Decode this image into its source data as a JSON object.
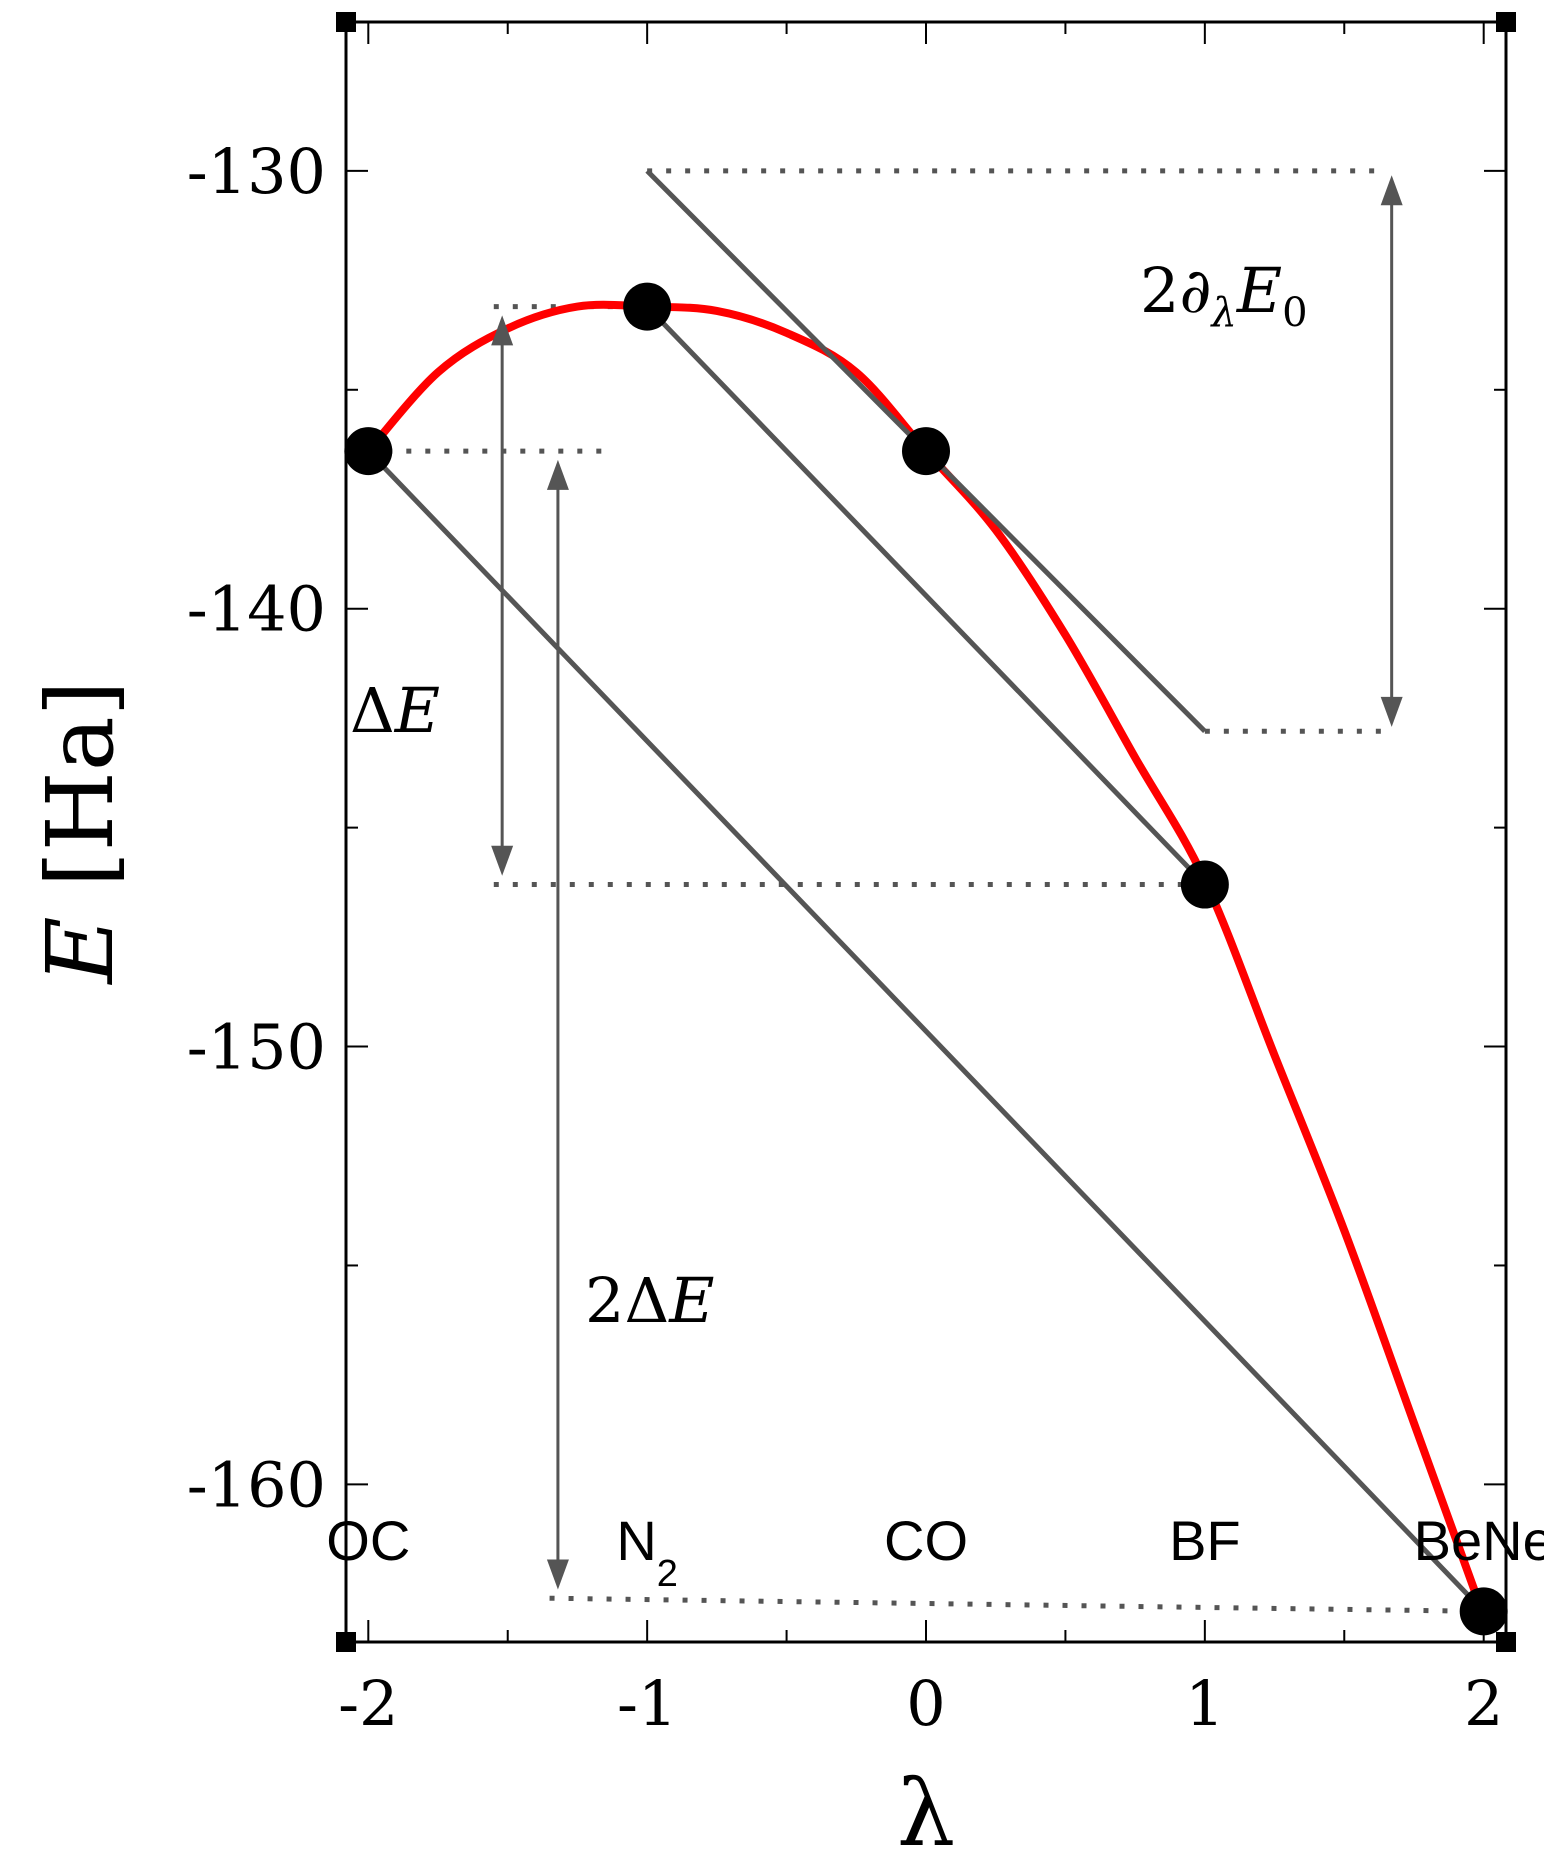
{
  "chart_data": {
    "type": "line",
    "xlabel": "λ",
    "ylabel_italic": "E",
    "ylabel_rest": " [Ha]",
    "xlim": [
      -2.08,
      2.08
    ],
    "ylim": [
      -163.6,
      -126.6
    ],
    "x_ticks": [
      -2,
      -1,
      0,
      1,
      2
    ],
    "x_tick_labels": [
      "-2",
      "-1",
      "0",
      "1",
      "2"
    ],
    "x_minor_ticks": [
      -1.5,
      -0.5,
      0.5,
      1.5
    ],
    "y_ticks": [
      -130,
      -140,
      -150,
      -160
    ],
    "y_tick_labels": [
      "-130",
      "-140",
      "-150",
      "-160"
    ],
    "y_minor_ticks": [
      -135,
      -145,
      -155
    ],
    "curve": {
      "color": "#ff0000",
      "x": [
        -2,
        -1.75,
        -1.5,
        -1.25,
        -1,
        -0.75,
        -0.5,
        -0.25,
        0,
        0.25,
        0.5,
        0.75,
        1,
        1.25,
        1.5,
        1.75,
        2
      ],
      "y": [
        -136.4,
        -134.6,
        -133.6,
        -133.1,
        -133.1,
        -133.2,
        -133.7,
        -134.6,
        -136.4,
        -138.2,
        -140.6,
        -143.4,
        -146.2,
        -150.2,
        -154.2,
        -158.6,
        -163.0
      ]
    },
    "points": {
      "color": "#000000",
      "x": [
        -2,
        -1,
        0,
        1,
        2
      ],
      "y": [
        -136.4,
        -133.1,
        -136.4,
        -146.3,
        -162.9
      ]
    },
    "molecule_labels": [
      {
        "x": -2,
        "text": "OC"
      },
      {
        "x": -1,
        "text": "N",
        "sub": "2"
      },
      {
        "x": 0,
        "text": "CO"
      },
      {
        "x": 1,
        "text": "BF"
      },
      {
        "x": 2,
        "text": "BeNe"
      }
    ],
    "tangent_lines": [
      {
        "from": [
          -1.0,
          -130.0
        ],
        "to": [
          1.0,
          -142.8
        ]
      },
      {
        "from": [
          -1.0,
          -133.1
        ],
        "to": [
          1.0,
          -146.3
        ]
      },
      {
        "from": [
          -2.0,
          -136.4
        ],
        "to": [
          2.0,
          -162.9
        ]
      }
    ],
    "dotted_guides": [
      {
        "from": [
          -1.0,
          -130.0
        ],
        "to": [
          1.65,
          -130.0
        ]
      },
      {
        "from": [
          1.0,
          -142.8
        ],
        "to": [
          1.65,
          -142.8
        ]
      },
      {
        "from": [
          -1.55,
          -133.1
        ],
        "to": [
          -1.0,
          -133.1
        ]
      },
      {
        "from": [
          -1.55,
          -146.3
        ],
        "to": [
          1.0,
          -146.3
        ]
      },
      {
        "from": [
          -2.0,
          -136.4
        ],
        "to": [
          -1.15,
          -136.4
        ]
      },
      {
        "from": [
          -1.35,
          -162.6
        ],
        "to": [
          2.0,
          -162.9
        ]
      }
    ],
    "arrows": [
      {
        "x": 1.67,
        "y1": -130.1,
        "y2": -142.7
      },
      {
        "x": -1.52,
        "y1": -133.3,
        "y2": -146.1
      },
      {
        "x": -1.32,
        "y1": -136.6,
        "y2": -162.4
      }
    ],
    "annotations": {
      "derivative": {
        "prefix": "2∂",
        "sub1": "λ",
        "var": "E",
        "sub2": "0"
      },
      "delta": {
        "prefix": "Δ",
        "var": "E"
      },
      "two_delta": {
        "prefix": "2Δ",
        "var": "E"
      }
    }
  }
}
